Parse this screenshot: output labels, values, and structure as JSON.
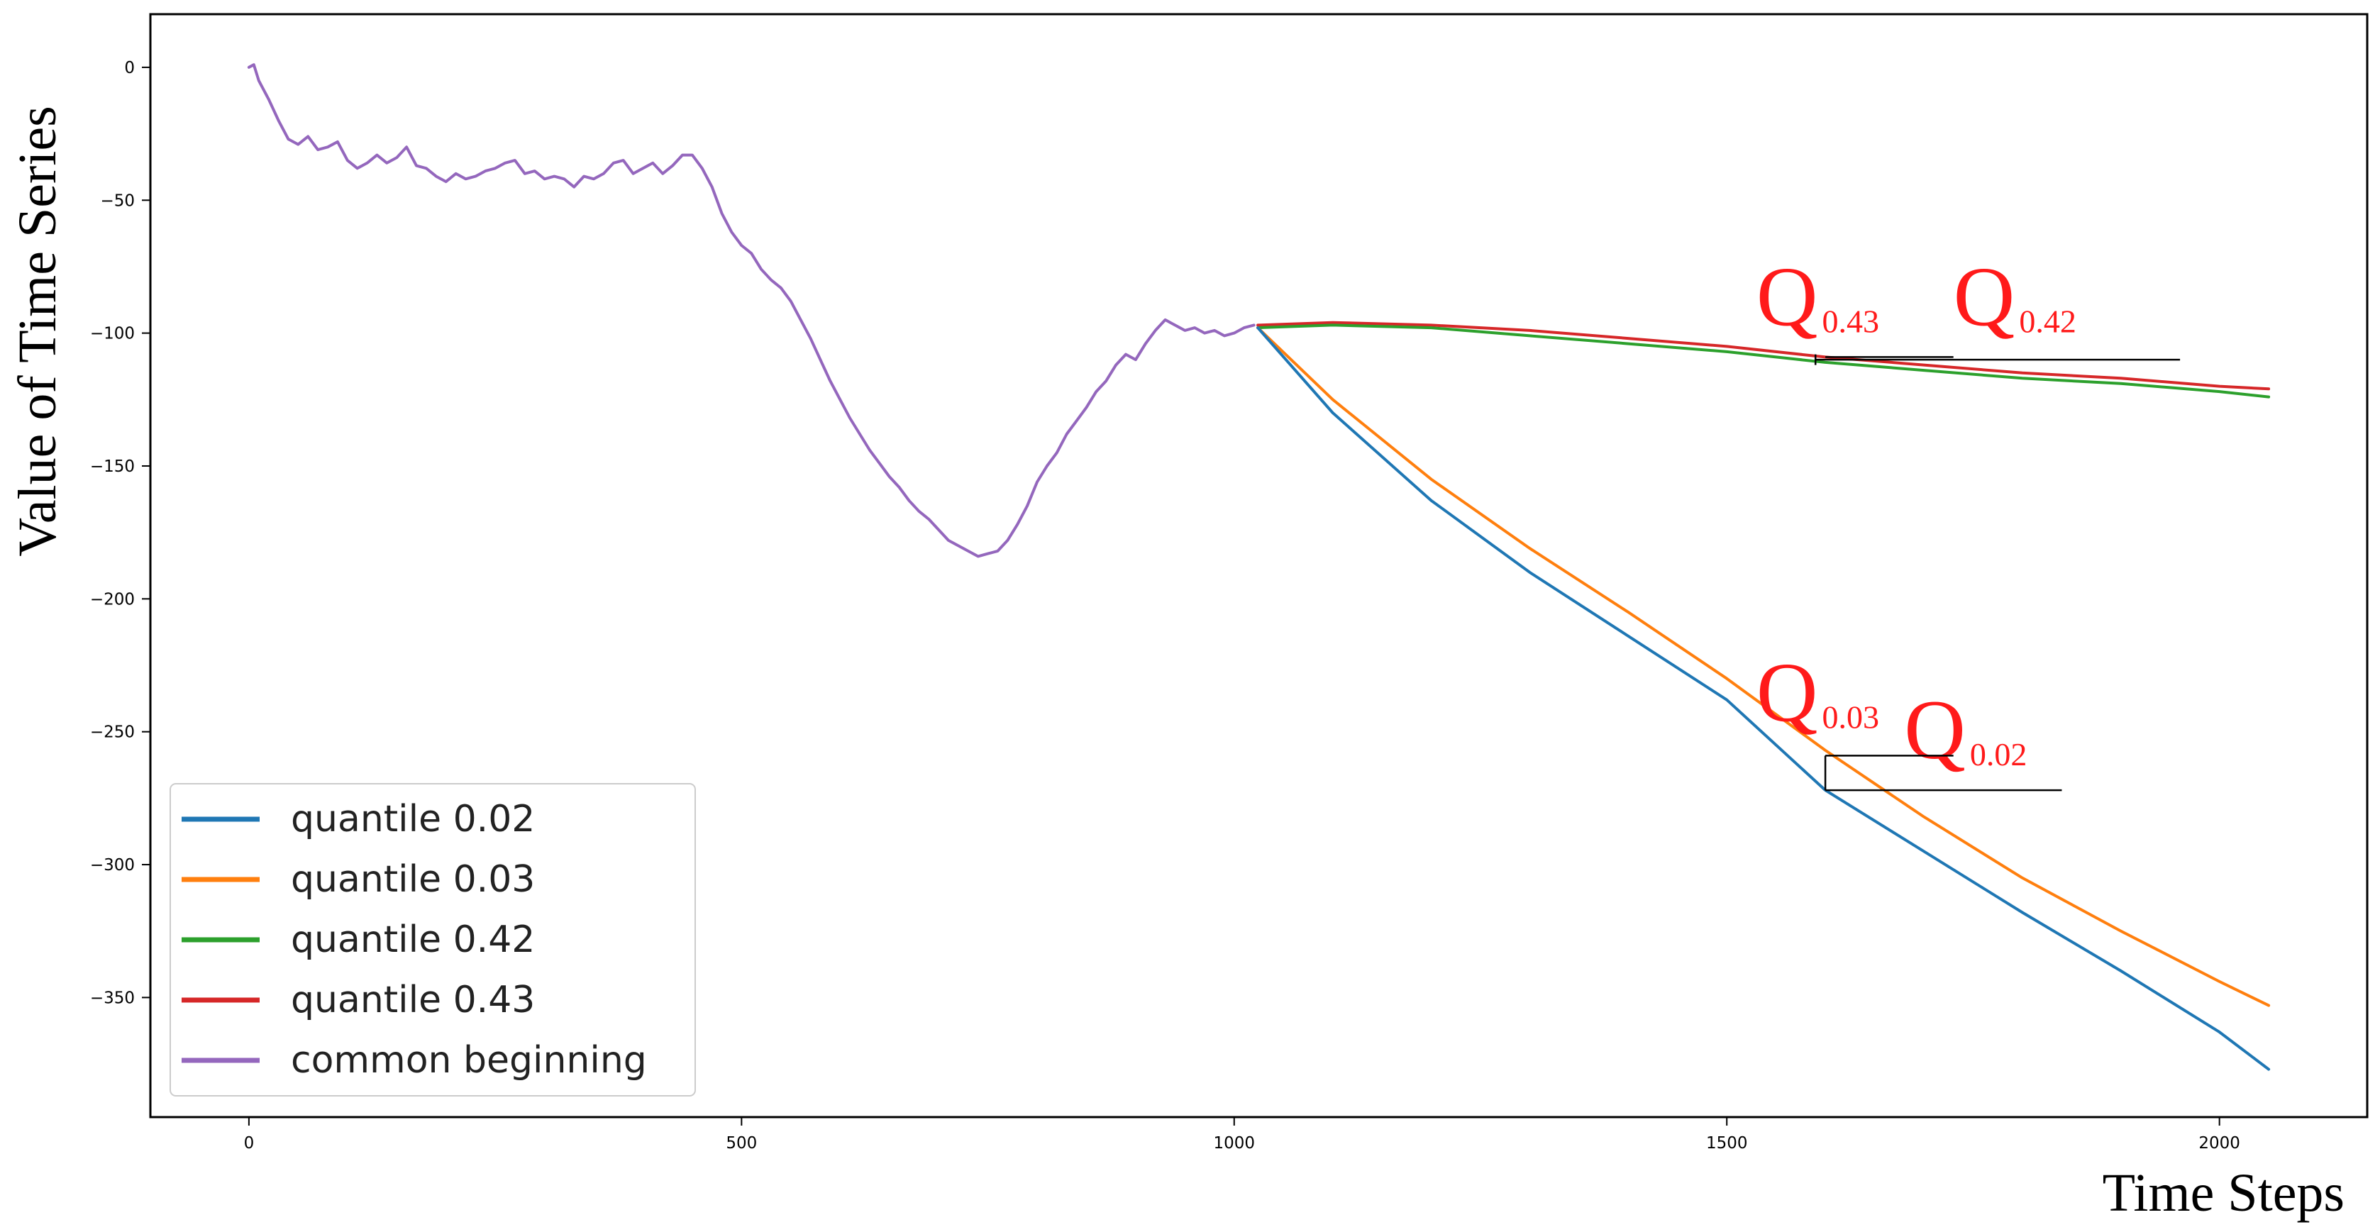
{
  "chart_data": {
    "type": "line",
    "title": "",
    "xlabel": "Time Steps",
    "ylabel": "Value of Time Series",
    "xlim": [
      -100,
      2150
    ],
    "ylim": [
      -395,
      20
    ],
    "xticks": [
      0,
      500,
      1000,
      1500,
      2000
    ],
    "xtick_labels": [
      "0",
      "500",
      "1000",
      "1500",
      "2000"
    ],
    "yticks": [
      0,
      -50,
      -100,
      -150,
      -200,
      -250,
      -300,
      -350
    ],
    "ytick_labels": [
      "0",
      "−50",
      "−100",
      "−150",
      "−200",
      "−250",
      "−300",
      "−350"
    ],
    "grid": false,
    "legend_position": "bottom-left",
    "series": [
      {
        "name": "quantile 0.02",
        "color": "#1f77b4",
        "points": [
          [
            1024,
            -98
          ],
          [
            1100,
            -130
          ],
          [
            1200,
            -163
          ],
          [
            1300,
            -190
          ],
          [
            1400,
            -214
          ],
          [
            1500,
            -238
          ],
          [
            1600,
            -272
          ],
          [
            1700,
            -295
          ],
          [
            1800,
            -318
          ],
          [
            1900,
            -340
          ],
          [
            2000,
            -363
          ],
          [
            2050,
            -377
          ]
        ]
      },
      {
        "name": "quantile 0.03",
        "color": "#ff7f0e",
        "points": [
          [
            1024,
            -98
          ],
          [
            1100,
            -125
          ],
          [
            1200,
            -155
          ],
          [
            1300,
            -181
          ],
          [
            1400,
            -205
          ],
          [
            1500,
            -230
          ],
          [
            1600,
            -257
          ],
          [
            1700,
            -282
          ],
          [
            1800,
            -305
          ],
          [
            1900,
            -325
          ],
          [
            2000,
            -344
          ],
          [
            2050,
            -353
          ]
        ]
      },
      {
        "name": "quantile 0.42",
        "color": "#2ca02c",
        "points": [
          [
            1024,
            -98
          ],
          [
            1100,
            -97
          ],
          [
            1200,
            -98
          ],
          [
            1300,
            -101
          ],
          [
            1400,
            -104
          ],
          [
            1500,
            -107
          ],
          [
            1600,
            -111
          ],
          [
            1700,
            -114
          ],
          [
            1800,
            -117
          ],
          [
            1900,
            -119
          ],
          [
            2000,
            -122
          ],
          [
            2050,
            -124
          ]
        ]
      },
      {
        "name": "quantile 0.43",
        "color": "#d62728",
        "points": [
          [
            1024,
            -97
          ],
          [
            1100,
            -96
          ],
          [
            1200,
            -97
          ],
          [
            1300,
            -99
          ],
          [
            1400,
            -102
          ],
          [
            1500,
            -105
          ],
          [
            1600,
            -109
          ],
          [
            1700,
            -112
          ],
          [
            1800,
            -115
          ],
          [
            1900,
            -117
          ],
          [
            2000,
            -120
          ],
          [
            2050,
            -121
          ]
        ]
      },
      {
        "name": "common beginning",
        "color": "#9467bd",
        "points": [
          [
            0,
            0
          ],
          [
            5,
            1
          ],
          [
            10,
            -5
          ],
          [
            20,
            -12
          ],
          [
            30,
            -20
          ],
          [
            40,
            -27
          ],
          [
            50,
            -29
          ],
          [
            60,
            -26
          ],
          [
            70,
            -31
          ],
          [
            80,
            -30
          ],
          [
            90,
            -28
          ],
          [
            100,
            -35
          ],
          [
            110,
            -38
          ],
          [
            120,
            -36
          ],
          [
            130,
            -33
          ],
          [
            140,
            -36
          ],
          [
            150,
            -34
          ],
          [
            160,
            -30
          ],
          [
            170,
            -37
          ],
          [
            180,
            -38
          ],
          [
            190,
            -41
          ],
          [
            200,
            -43
          ],
          [
            210,
            -40
          ],
          [
            220,
            -42
          ],
          [
            230,
            -41
          ],
          [
            240,
            -39
          ],
          [
            250,
            -38
          ],
          [
            260,
            -36
          ],
          [
            270,
            -35
          ],
          [
            280,
            -40
          ],
          [
            290,
            -39
          ],
          [
            300,
            -42
          ],
          [
            310,
            -41
          ],
          [
            320,
            -42
          ],
          [
            330,
            -45
          ],
          [
            340,
            -41
          ],
          [
            350,
            -42
          ],
          [
            360,
            -40
          ],
          [
            370,
            -36
          ],
          [
            380,
            -35
          ],
          [
            390,
            -40
          ],
          [
            400,
            -38
          ],
          [
            410,
            -36
          ],
          [
            420,
            -40
          ],
          [
            430,
            -37
          ],
          [
            440,
            -33
          ],
          [
            450,
            -33
          ],
          [
            460,
            -38
          ],
          [
            470,
            -45
          ],
          [
            480,
            -55
          ],
          [
            490,
            -62
          ],
          [
            500,
            -67
          ],
          [
            510,
            -70
          ],
          [
            520,
            -76
          ],
          [
            530,
            -80
          ],
          [
            540,
            -83
          ],
          [
            550,
            -88
          ],
          [
            560,
            -95
          ],
          [
            570,
            -102
          ],
          [
            580,
            -110
          ],
          [
            590,
            -118
          ],
          [
            600,
            -125
          ],
          [
            610,
            -132
          ],
          [
            620,
            -138
          ],
          [
            630,
            -144
          ],
          [
            640,
            -149
          ],
          [
            650,
            -154
          ],
          [
            660,
            -158
          ],
          [
            670,
            -163
          ],
          [
            680,
            -167
          ],
          [
            690,
            -170
          ],
          [
            700,
            -174
          ],
          [
            710,
            -178
          ],
          [
            720,
            -180
          ],
          [
            730,
            -182
          ],
          [
            740,
            -184
          ],
          [
            750,
            -183
          ],
          [
            760,
            -182
          ],
          [
            770,
            -178
          ],
          [
            780,
            -172
          ],
          [
            790,
            -165
          ],
          [
            800,
            -156
          ],
          [
            810,
            -150
          ],
          [
            820,
            -145
          ],
          [
            830,
            -138
          ],
          [
            840,
            -133
          ],
          [
            850,
            -128
          ],
          [
            860,
            -122
          ],
          [
            870,
            -118
          ],
          [
            880,
            -112
          ],
          [
            890,
            -108
          ],
          [
            900,
            -110
          ],
          [
            910,
            -104
          ],
          [
            920,
            -99
          ],
          [
            930,
            -95
          ],
          [
            940,
            -97
          ],
          [
            950,
            -99
          ],
          [
            960,
            -98
          ],
          [
            970,
            -100
          ],
          [
            980,
            -99
          ],
          [
            990,
            -101
          ],
          [
            1000,
            -100
          ],
          [
            1010,
            -98
          ],
          [
            1020,
            -97
          ]
        ]
      }
    ],
    "annotations": [
      {
        "text": "Q",
        "sub": "0.43",
        "x": 1530,
        "y": -97
      },
      {
        "text": "Q",
        "sub": "0.42",
        "x": 1730,
        "y": -97
      },
      {
        "text": "Q",
        "sub": "0.03",
        "x": 1530,
        "y": -246
      },
      {
        "text": "Q",
        "sub": "0.02",
        "x": 1680,
        "y": -260
      }
    ]
  }
}
